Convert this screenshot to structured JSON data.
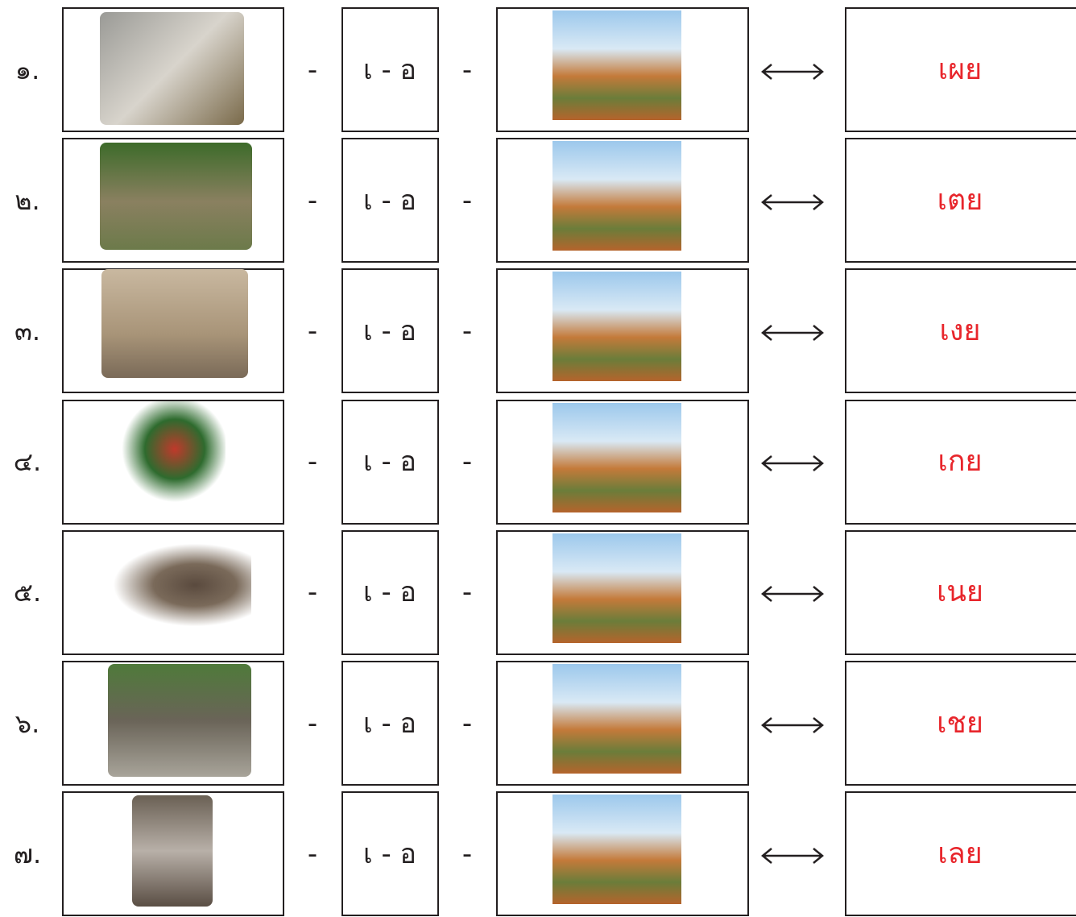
{
  "rows": [
    {
      "number": "๑.",
      "separator_1": "-",
      "vowel": "เ - อ",
      "separator_2": "-",
      "word": "เผย"
    },
    {
      "number": "๒.",
      "separator_1": "-",
      "vowel": "เ - อ",
      "separator_2": "-",
      "word": "เตย"
    },
    {
      "number": "๓.",
      "separator_1": "-",
      "vowel": "เ - อ",
      "separator_2": "-",
      "word": "เงย"
    },
    {
      "number": "๔.",
      "separator_1": "-",
      "vowel": "เ - อ",
      "separator_2": "-",
      "word": "เกย"
    },
    {
      "number": "๕.",
      "separator_1": "-",
      "vowel": "เ - อ",
      "separator_2": "-",
      "word": "เนย"
    },
    {
      "number": "๖.",
      "separator_1": "-",
      "vowel": "เ - อ",
      "separator_2": "-",
      "word": "เชย"
    },
    {
      "number": "๗.",
      "separator_1": "-",
      "vowel": "เ - อ",
      "separator_2": "-",
      "word": "เลย"
    }
  ]
}
